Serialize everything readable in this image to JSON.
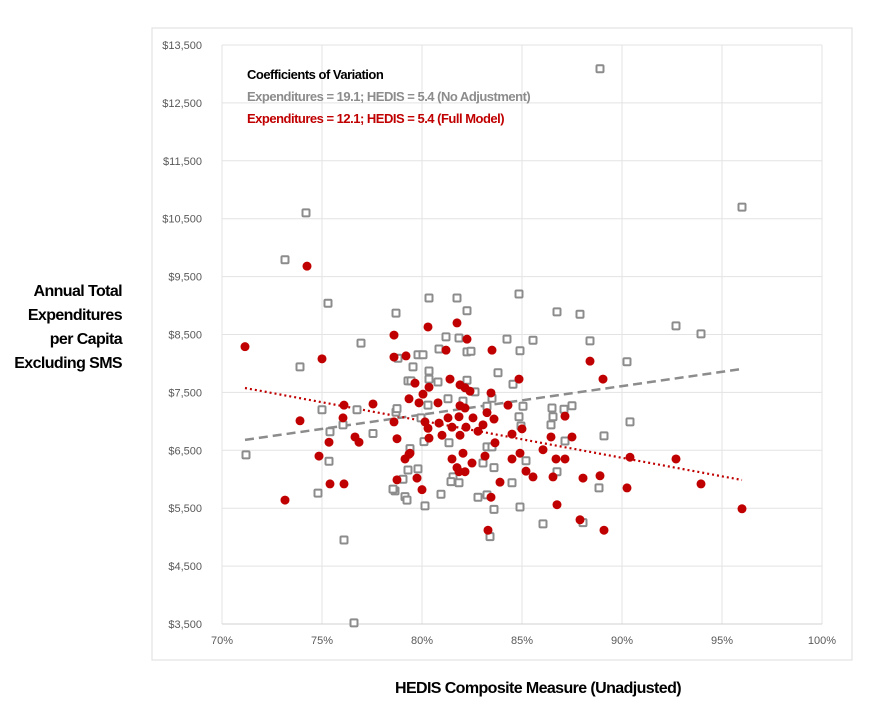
{
  "chart_data": {
    "type": "scatter",
    "title": "",
    "xlabel": "HEDIS Composite Measure (Unadjusted)",
    "ylabel_lines": [
      "Annual Total",
      "Expenditures",
      "per Capita",
      "Excluding SMS"
    ],
    "xlim": [
      70,
      100
    ],
    "ylim": [
      3500,
      13500
    ],
    "x_ticks": [
      "70%",
      "75%",
      "80%",
      "85%",
      "90%",
      "95%",
      "100%"
    ],
    "x_tick_values": [
      70,
      75,
      80,
      85,
      90,
      95,
      100
    ],
    "y_ticks": [
      "$3,500",
      "$4,500",
      "$5,500",
      "$6,500",
      "$7,500",
      "$8,500",
      "$9,500",
      "$10,500",
      "$11,500",
      "$12,500",
      "$13,500"
    ],
    "y_tick_values": [
      3500,
      4500,
      5500,
      6500,
      7500,
      8500,
      9500,
      10500,
      11500,
      12500,
      13500
    ],
    "grid": true,
    "annotation": {
      "title": "Coefficients of Variation",
      "line1": "Expenditures = 19.1; HEDIS = 5.4 (No Adjustment)",
      "line2": "Expenditures = 12.1; HEDIS = 5.4 (Full Model)"
    },
    "colors": {
      "unadjusted": "#8c8c8c",
      "full_model": "#c00000",
      "grid": "#e3e3e3"
    },
    "series": [
      {
        "name": "No Adjustment",
        "marker": "square-hollow",
        "points": [
          [
            88.9,
            13090
          ],
          [
            74.2,
            10600
          ],
          [
            96.0,
            10700
          ],
          [
            73.15,
            9790
          ],
          [
            75.3,
            9040
          ],
          [
            73.9,
            7940
          ],
          [
            75.0,
            7200
          ],
          [
            71.2,
            6420
          ],
          [
            75.4,
            6820
          ],
          [
            75.35,
            6310
          ],
          [
            74.8,
            5760
          ],
          [
            76.1,
            4950
          ],
          [
            76.6,
            3520
          ],
          [
            76.95,
            8350
          ],
          [
            76.75,
            7200
          ],
          [
            77.55,
            6790
          ],
          [
            76.05,
            6940
          ],
          [
            78.7,
            8870
          ],
          [
            78.7,
            7160
          ],
          [
            78.8,
            8090
          ],
          [
            78.65,
            5800
          ],
          [
            79.15,
            5700
          ],
          [
            79.3,
            7700
          ],
          [
            79.55,
            7940
          ],
          [
            79.8,
            8150
          ],
          [
            80.35,
            9130
          ],
          [
            81.75,
            9130
          ],
          [
            82.25,
            8910
          ],
          [
            84.85,
            9200
          ],
          [
            81.2,
            8460
          ],
          [
            81.85,
            8440
          ],
          [
            84.25,
            8420
          ],
          [
            85.55,
            8400
          ],
          [
            80.85,
            8250
          ],
          [
            82.25,
            8200
          ],
          [
            82.45,
            8210
          ],
          [
            84.9,
            8220
          ],
          [
            80.05,
            8150
          ],
          [
            80.35,
            7870
          ],
          [
            83.8,
            7840
          ],
          [
            79.45,
            7700
          ],
          [
            80.35,
            7730
          ],
          [
            80.8,
            7680
          ],
          [
            82.25,
            7710
          ],
          [
            82.65,
            7510
          ],
          [
            84.55,
            7640
          ],
          [
            81.3,
            7390
          ],
          [
            80.3,
            7280
          ],
          [
            82.05,
            7350
          ],
          [
            83.25,
            7260
          ],
          [
            83.5,
            7400
          ],
          [
            85.05,
            7260
          ],
          [
            84.85,
            7080
          ],
          [
            84.95,
            6920
          ],
          [
            78.75,
            7220
          ],
          [
            79.95,
            7060
          ],
          [
            80.1,
            6650
          ],
          [
            79.4,
            6530
          ],
          [
            79.3,
            6160
          ],
          [
            79.8,
            6180
          ],
          [
            79.05,
            6000
          ],
          [
            78.55,
            5830
          ],
          [
            79.25,
            5640
          ],
          [
            80.15,
            5540
          ],
          [
            80.95,
            5740
          ],
          [
            81.35,
            6630
          ],
          [
            81.55,
            6040
          ],
          [
            81.85,
            5940
          ],
          [
            81.45,
            5960
          ],
          [
            82.8,
            5690
          ],
          [
            83.25,
            5730
          ],
          [
            83.05,
            6280
          ],
          [
            83.6,
            6200
          ],
          [
            84.5,
            5940
          ],
          [
            85.2,
            6320
          ],
          [
            83.6,
            5480
          ],
          [
            84.9,
            5520
          ],
          [
            83.4,
            5010
          ],
          [
            83.25,
            6560
          ],
          [
            83.5,
            6560
          ],
          [
            86.75,
            8890
          ],
          [
            87.9,
            8850
          ],
          [
            88.4,
            8390
          ],
          [
            92.7,
            8650
          ],
          [
            93.95,
            8510
          ],
          [
            90.25,
            8030
          ],
          [
            86.5,
            7230
          ],
          [
            87.1,
            7210
          ],
          [
            87.5,
            7270
          ],
          [
            86.55,
            7080
          ],
          [
            86.45,
            6940
          ],
          [
            90.4,
            6990
          ],
          [
            89.1,
            6750
          ],
          [
            87.15,
            6660
          ],
          [
            86.75,
            6130
          ],
          [
            88.85,
            5850
          ],
          [
            86.05,
            5230
          ],
          [
            88.05,
            5250
          ]
        ],
        "trendline": [
          [
            71.15,
            6680
          ],
          [
            96.0,
            7905
          ]
        ]
      },
      {
        "name": "Full Model",
        "marker": "circle-filled",
        "points": [
          [
            74.25,
            9680
          ],
          [
            71.15,
            8290
          ],
          [
            75.0,
            8080
          ],
          [
            78.6,
            8490
          ],
          [
            78.6,
            8110
          ],
          [
            79.2,
            8130
          ],
          [
            79.65,
            7660
          ],
          [
            76.1,
            7280
          ],
          [
            77.55,
            7300
          ],
          [
            73.9,
            7010
          ],
          [
            76.05,
            7060
          ],
          [
            75.35,
            6640
          ],
          [
            76.65,
            6730
          ],
          [
            76.85,
            6640
          ],
          [
            74.85,
            6400
          ],
          [
            75.4,
            5920
          ],
          [
            76.1,
            5920
          ],
          [
            73.15,
            5640
          ],
          [
            78.6,
            6990
          ],
          [
            78.75,
            6700
          ],
          [
            79.15,
            6350
          ],
          [
            79.35,
            6430
          ],
          [
            78.75,
            5990
          ],
          [
            79.75,
            6020
          ],
          [
            79.35,
            7390
          ],
          [
            80.3,
            8630
          ],
          [
            81.75,
            8700
          ],
          [
            82.25,
            8420
          ],
          [
            81.2,
            8230
          ],
          [
            83.5,
            8230
          ],
          [
            81.4,
            7730
          ],
          [
            84.85,
            7730
          ],
          [
            80.35,
            7590
          ],
          [
            80.05,
            7470
          ],
          [
            81.9,
            7630
          ],
          [
            82.15,
            7580
          ],
          [
            82.4,
            7520
          ],
          [
            83.45,
            7490
          ],
          [
            79.85,
            7320
          ],
          [
            80.8,
            7320
          ],
          [
            81.9,
            7270
          ],
          [
            82.15,
            7230
          ],
          [
            84.3,
            7280
          ],
          [
            80.15,
            6990
          ],
          [
            80.85,
            6970
          ],
          [
            81.3,
            7060
          ],
          [
            81.85,
            7080
          ],
          [
            82.55,
            7060
          ],
          [
            83.05,
            6940
          ],
          [
            83.25,
            7150
          ],
          [
            83.6,
            7040
          ],
          [
            81.5,
            6900
          ],
          [
            82.2,
            6900
          ],
          [
            82.8,
            6830
          ],
          [
            80.3,
            6880
          ],
          [
            84.5,
            6780
          ],
          [
            85.0,
            6870
          ],
          [
            80.35,
            6710
          ],
          [
            81.0,
            6760
          ],
          [
            81.9,
            6760
          ],
          [
            83.65,
            6630
          ],
          [
            79.4,
            6450
          ],
          [
            82.05,
            6450
          ],
          [
            81.5,
            6350
          ],
          [
            82.5,
            6280
          ],
          [
            81.75,
            6200
          ],
          [
            82.15,
            6130
          ],
          [
            81.85,
            6130
          ],
          [
            83.15,
            6400
          ],
          [
            84.9,
            6450
          ],
          [
            84.5,
            6350
          ],
          [
            85.2,
            6140
          ],
          [
            85.55,
            6040
          ],
          [
            83.9,
            5950
          ],
          [
            80.0,
            5820
          ],
          [
            83.45,
            5690
          ],
          [
            83.3,
            5120
          ],
          [
            88.4,
            8040
          ],
          [
            89.05,
            7730
          ],
          [
            87.15,
            7090
          ],
          [
            86.45,
            6730
          ],
          [
            87.5,
            6730
          ],
          [
            86.05,
            6510
          ],
          [
            86.7,
            6350
          ],
          [
            87.15,
            6350
          ],
          [
            90.4,
            6380
          ],
          [
            92.7,
            6350
          ],
          [
            86.55,
            6040
          ],
          [
            88.05,
            6020
          ],
          [
            88.9,
            6060
          ],
          [
            90.25,
            5850
          ],
          [
            93.95,
            5920
          ],
          [
            86.75,
            5560
          ],
          [
            87.9,
            5300
          ],
          [
            89.1,
            5120
          ],
          [
            96.0,
            5490
          ]
        ],
        "trendline": [
          [
            71.15,
            7576
          ],
          [
            96.0,
            5987
          ]
        ]
      }
    ]
  }
}
